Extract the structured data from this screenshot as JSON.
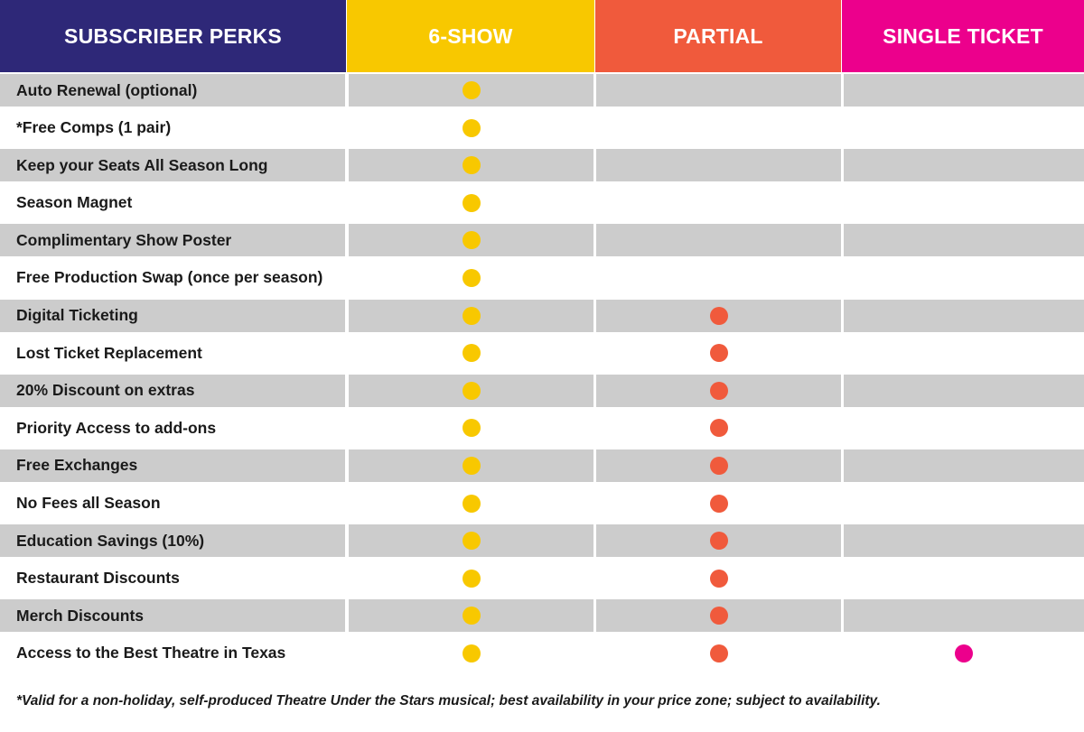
{
  "colors": {
    "perks_header": "#2e2878",
    "six_show": "#f8c800",
    "partial": "#f05a3c",
    "single_ticket": "#ec008c",
    "row_shade": "#cccccc"
  },
  "header": {
    "perks": "SUBSCRIBER PERKS",
    "six_show": "6-SHOW",
    "partial": "PARTIAL",
    "single_ticket": "SINGLE TICKET"
  },
  "rows": [
    {
      "label": "Auto Renewal (optional)",
      "six_show": true,
      "partial": false,
      "single_ticket": false
    },
    {
      "label": "*Free Comps (1 pair)",
      "six_show": true,
      "partial": false,
      "single_ticket": false
    },
    {
      "label": "Keep your Seats All Season Long",
      "six_show": true,
      "partial": false,
      "single_ticket": false
    },
    {
      "label": "Season Magnet",
      "six_show": true,
      "partial": false,
      "single_ticket": false
    },
    {
      "label": "Complimentary Show Poster",
      "six_show": true,
      "partial": false,
      "single_ticket": false
    },
    {
      "label": "Free Production Swap (once per season)",
      "six_show": true,
      "partial": false,
      "single_ticket": false
    },
    {
      "label": "Digital Ticketing",
      "six_show": true,
      "partial": true,
      "single_ticket": false
    },
    {
      "label": "Lost Ticket Replacement",
      "six_show": true,
      "partial": true,
      "single_ticket": false
    },
    {
      "label": "20% Discount on extras",
      "six_show": true,
      "partial": true,
      "single_ticket": false
    },
    {
      "label": "Priority Access to add-ons",
      "six_show": true,
      "partial": true,
      "single_ticket": false
    },
    {
      "label": "Free Exchanges",
      "six_show": true,
      "partial": true,
      "single_ticket": false
    },
    {
      "label": "No Fees all Season",
      "six_show": true,
      "partial": true,
      "single_ticket": false
    },
    {
      "label": "Education Savings (10%)",
      "six_show": true,
      "partial": true,
      "single_ticket": false
    },
    {
      "label": "Restaurant Discounts",
      "six_show": true,
      "partial": true,
      "single_ticket": false
    },
    {
      "label": "Merch Discounts",
      "six_show": true,
      "partial": true,
      "single_ticket": false
    },
    {
      "label": "Access to the Best Theatre in Texas",
      "six_show": true,
      "partial": true,
      "single_ticket": true
    }
  ],
  "footnote": "*Valid for a non-holiday, self-produced Theatre Under the Stars musical; best availability in your price zone; subject to availability."
}
